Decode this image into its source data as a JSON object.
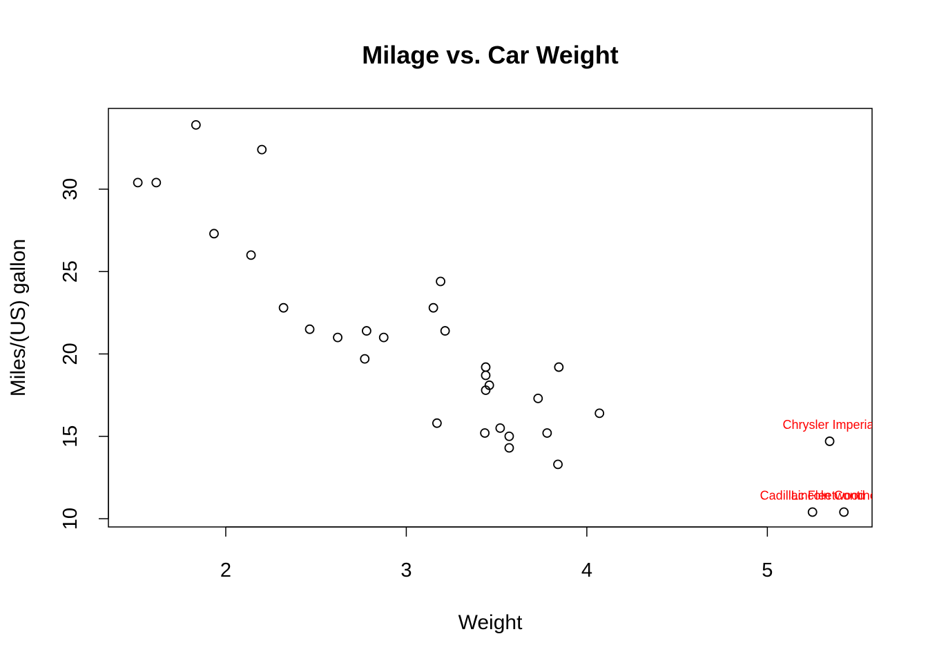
{
  "chart_data": {
    "type": "scatter",
    "title": "Milage vs. Car Weight",
    "xlabel": "Weight",
    "ylabel": "Miles/(US) gallon",
    "xlim": [
      1.35,
      5.58
    ],
    "ylim": [
      9.5,
      34.9
    ],
    "xticks": [
      2,
      3,
      4,
      5
    ],
    "xtick_labels": [
      "2",
      "3",
      "4",
      "5"
    ],
    "yticks": [
      10,
      15,
      20,
      25,
      30
    ],
    "ytick_labels": [
      "10",
      "15",
      "20",
      "25",
      "30"
    ],
    "grid": false,
    "legend": false,
    "marker": "open-circle",
    "point_color": "#000000",
    "annotation_color": "#ff0000",
    "points": [
      {
        "x": 2.62,
        "y": 21.0
      },
      {
        "x": 2.875,
        "y": 21.0
      },
      {
        "x": 2.32,
        "y": 22.8
      },
      {
        "x": 3.215,
        "y": 21.4
      },
      {
        "x": 3.44,
        "y": 18.7
      },
      {
        "x": 3.46,
        "y": 18.1
      },
      {
        "x": 3.57,
        "y": 14.3
      },
      {
        "x": 3.19,
        "y": 24.4
      },
      {
        "x": 3.15,
        "y": 22.8
      },
      {
        "x": 3.44,
        "y": 19.2
      },
      {
        "x": 3.44,
        "y": 17.8
      },
      {
        "x": 4.07,
        "y": 16.4
      },
      {
        "x": 3.73,
        "y": 17.3
      },
      {
        "x": 3.78,
        "y": 15.2
      },
      {
        "x": 5.25,
        "y": 10.4
      },
      {
        "x": 5.424,
        "y": 10.4
      },
      {
        "x": 5.345,
        "y": 14.7
      },
      {
        "x": 2.2,
        "y": 32.4
      },
      {
        "x": 1.615,
        "y": 30.4
      },
      {
        "x": 1.835,
        "y": 33.9
      },
      {
        "x": 2.465,
        "y": 21.5
      },
      {
        "x": 3.52,
        "y": 15.5
      },
      {
        "x": 3.435,
        "y": 15.2
      },
      {
        "x": 3.84,
        "y": 13.3
      },
      {
        "x": 3.845,
        "y": 19.2
      },
      {
        "x": 1.935,
        "y": 27.3
      },
      {
        "x": 2.14,
        "y": 26.0
      },
      {
        "x": 1.513,
        "y": 30.4
      },
      {
        "x": 3.17,
        "y": 15.8
      },
      {
        "x": 2.77,
        "y": 19.7
      },
      {
        "x": 3.57,
        "y": 15.0
      },
      {
        "x": 2.78,
        "y": 21.4
      }
    ],
    "annotations": [
      {
        "text": "Cadillac Fleetwood",
        "x": 5.25,
        "y": 10.4
      },
      {
        "text": "Lincoln Continental",
        "x": 5.424,
        "y": 10.4
      },
      {
        "text": "Chrysler Imperial",
        "x": 5.345,
        "y": 14.7
      }
    ]
  }
}
